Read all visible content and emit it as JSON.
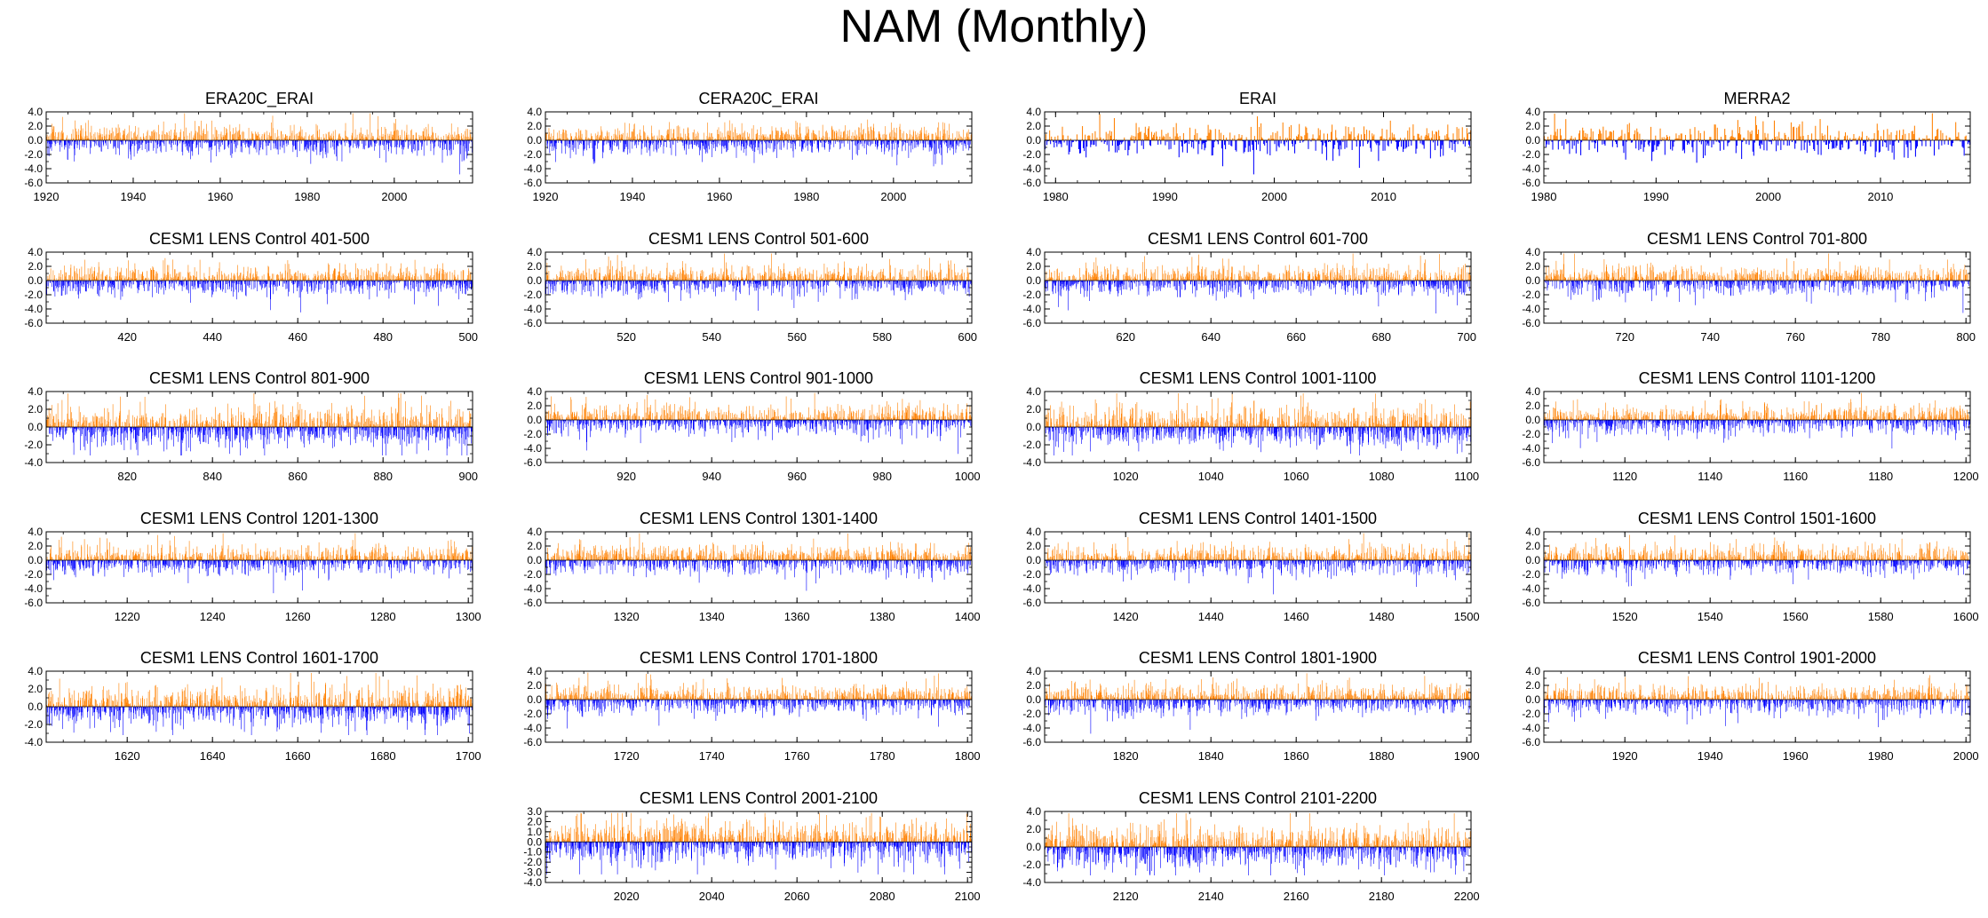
{
  "figure": {
    "title": "NAM (Monthly)",
    "colors": {
      "positive": "#ff8000",
      "negative": "#0000ff",
      "frame": "#000000",
      "zero": "#000000"
    }
  },
  "chart_data": [
    {
      "type": "bar",
      "title": "ERA20C_ERAI",
      "x_range": [
        1920,
        2018
      ],
      "ylim": [
        -6,
        4
      ],
      "yticks": [
        "4.0",
        "2.0",
        "0.0",
        "-2.0",
        "-4.0",
        "-6.0"
      ],
      "xticks": [
        1920,
        1940,
        1960,
        1980,
        2000
      ],
      "amplitude": 1.0
    },
    {
      "type": "bar",
      "title": "CERA20C_ERAI",
      "x_range": [
        1920,
        2018
      ],
      "ylim": [
        -6,
        4
      ],
      "yticks": [
        "4.0",
        "2.0",
        "0.0",
        "-2.0",
        "-4.0",
        "-6.0"
      ],
      "xticks": [
        1920,
        1940,
        1960,
        1980,
        2000
      ],
      "amplitude": 1.0
    },
    {
      "type": "bar",
      "title": "ERAI",
      "x_range": [
        1979,
        2018
      ],
      "ylim": [
        -6,
        4
      ],
      "yticks": [
        "4.0",
        "2.0",
        "0.0",
        "-2.0",
        "-4.0",
        "-6.0"
      ],
      "xticks": [
        1980,
        1990,
        2000,
        2010
      ],
      "amplitude": 1.1
    },
    {
      "type": "bar",
      "title": "MERRA2",
      "x_range": [
        1980,
        2018
      ],
      "ylim": [
        -6,
        4
      ],
      "yticks": [
        "4.0",
        "2.0",
        "0.0",
        "-2.0",
        "-4.0",
        "-6.0"
      ],
      "xticks": [
        1980,
        1990,
        2000,
        2010
      ],
      "amplitude": 1.1
    },
    {
      "type": "bar",
      "title": "CESM1 LENS Control 401-500",
      "x_range": [
        401,
        501
      ],
      "ylim": [
        -6,
        4
      ],
      "yticks": [
        "4.0",
        "2.0",
        "0.0",
        "-2.0",
        "-4.0",
        "-6.0"
      ],
      "xticks": [
        420,
        440,
        460,
        480,
        500
      ],
      "amplitude": 1.0
    },
    {
      "type": "bar",
      "title": "CESM1 LENS Control 501-600",
      "x_range": [
        501,
        601
      ],
      "ylim": [
        -6,
        4
      ],
      "yticks": [
        "4.0",
        "2.0",
        "0.0",
        "-2.0",
        "-4.0",
        "-6.0"
      ],
      "xticks": [
        520,
        540,
        560,
        580,
        600
      ],
      "amplitude": 1.0
    },
    {
      "type": "bar",
      "title": "CESM1 LENS Control 601-700",
      "x_range": [
        601,
        701
      ],
      "ylim": [
        -6,
        4
      ],
      "yticks": [
        "4.0",
        "2.0",
        "0.0",
        "-2.0",
        "-4.0",
        "-6.0"
      ],
      "xticks": [
        620,
        640,
        660,
        680,
        700
      ],
      "amplitude": 1.0
    },
    {
      "type": "bar",
      "title": "CESM1 LENS Control 701-800",
      "x_range": [
        701,
        801
      ],
      "ylim": [
        -6,
        4
      ],
      "yticks": [
        "4.0",
        "2.0",
        "0.0",
        "-2.0",
        "-4.0",
        "-6.0"
      ],
      "xticks": [
        720,
        740,
        760,
        780,
        800
      ],
      "amplitude": 1.0
    },
    {
      "type": "bar",
      "title": "CESM1 LENS Control 801-900",
      "x_range": [
        801,
        901
      ],
      "ylim": [
        -4,
        4
      ],
      "yticks": [
        "4.0",
        "2.0",
        "0.0",
        "-2.0",
        "-4.0"
      ],
      "xticks": [
        820,
        840,
        860,
        880,
        900
      ],
      "amplitude": 1.1
    },
    {
      "type": "bar",
      "title": "CESM1 LENS Control 901-1000",
      "x_range": [
        901,
        1001
      ],
      "ylim": [
        -6,
        4
      ],
      "yticks": [
        "4.0",
        "2.0",
        "0.0",
        "-2.0",
        "-4.0",
        "-6.0"
      ],
      "xticks": [
        920,
        940,
        960,
        980,
        1000
      ],
      "amplitude": 1.0
    },
    {
      "type": "bar",
      "title": "CESM1 LENS Control 1001-1100",
      "x_range": [
        1001,
        1101
      ],
      "ylim": [
        -4,
        4
      ],
      "yticks": [
        "4.0",
        "2.0",
        "0.0",
        "-2.0",
        "-4.0"
      ],
      "xticks": [
        1020,
        1040,
        1060,
        1080,
        1100
      ],
      "amplitude": 1.1
    },
    {
      "type": "bar",
      "title": "CESM1 LENS Control 1101-1200",
      "x_range": [
        1101,
        1201
      ],
      "ylim": [
        -6,
        4
      ],
      "yticks": [
        "4.0",
        "2.0",
        "0.0",
        "-2.0",
        "-4.0",
        "-6.0"
      ],
      "xticks": [
        1120,
        1140,
        1160,
        1180,
        1200
      ],
      "amplitude": 1.0
    },
    {
      "type": "bar",
      "title": "CESM1 LENS Control 1201-1300",
      "x_range": [
        1201,
        1301
      ],
      "ylim": [
        -6,
        4
      ],
      "yticks": [
        "4.0",
        "2.0",
        "0.0",
        "-2.0",
        "-4.0",
        "-6.0"
      ],
      "xticks": [
        1220,
        1240,
        1260,
        1280,
        1300
      ],
      "amplitude": 1.0
    },
    {
      "type": "bar",
      "title": "CESM1 LENS Control 1301-1400",
      "x_range": [
        1301,
        1401
      ],
      "ylim": [
        -6,
        4
      ],
      "yticks": [
        "4.0",
        "2.0",
        "0.0",
        "-2.0",
        "-4.0",
        "-6.0"
      ],
      "xticks": [
        1320,
        1340,
        1360,
        1380,
        1400
      ],
      "amplitude": 1.0
    },
    {
      "type": "bar",
      "title": "CESM1 LENS Control 1401-1500",
      "x_range": [
        1401,
        1501
      ],
      "ylim": [
        -6,
        4
      ],
      "yticks": [
        "4.0",
        "2.0",
        "0.0",
        "-2.0",
        "-4.0",
        "-6.0"
      ],
      "xticks": [
        1420,
        1440,
        1460,
        1480,
        1500
      ],
      "amplitude": 1.0
    },
    {
      "type": "bar",
      "title": "CESM1 LENS Control 1501-1600",
      "x_range": [
        1501,
        1601
      ],
      "ylim": [
        -6,
        4
      ],
      "yticks": [
        "4.0",
        "2.0",
        "0.0",
        "-2.0",
        "-4.0",
        "-6.0"
      ],
      "xticks": [
        1520,
        1540,
        1560,
        1580,
        1600
      ],
      "amplitude": 1.0
    },
    {
      "type": "bar",
      "title": "CESM1 LENS Control 1601-1700",
      "x_range": [
        1601,
        1701
      ],
      "ylim": [
        -4,
        4
      ],
      "yticks": [
        "4.0",
        "2.0",
        "0.0",
        "-2.0",
        "-4.0"
      ],
      "xticks": [
        1620,
        1640,
        1660,
        1680,
        1700
      ],
      "amplitude": 1.1
    },
    {
      "type": "bar",
      "title": "CESM1 LENS Control 1701-1800",
      "x_range": [
        1701,
        1801
      ],
      "ylim": [
        -6,
        4
      ],
      "yticks": [
        "4.0",
        "2.0",
        "0.0",
        "-2.0",
        "-4.0",
        "-6.0"
      ],
      "xticks": [
        1720,
        1740,
        1760,
        1780,
        1800
      ],
      "amplitude": 1.0
    },
    {
      "type": "bar",
      "title": "CESM1 LENS Control 1801-1900",
      "x_range": [
        1801,
        1901
      ],
      "ylim": [
        -6,
        4
      ],
      "yticks": [
        "4.0",
        "2.0",
        "0.0",
        "-2.0",
        "-4.0",
        "-6.0"
      ],
      "xticks": [
        1820,
        1840,
        1860,
        1880,
        1900
      ],
      "amplitude": 1.0
    },
    {
      "type": "bar",
      "title": "CESM1 LENS Control 1901-2000",
      "x_range": [
        1901,
        2001
      ],
      "ylim": [
        -6,
        4
      ],
      "yticks": [
        "4.0",
        "2.0",
        "0.0",
        "-2.0",
        "-4.0",
        "-6.0"
      ],
      "xticks": [
        1920,
        1940,
        1960,
        1980,
        2000
      ],
      "amplitude": 1.0
    },
    {
      "type": "bar",
      "title": "CESM1 LENS Control 2001-2100",
      "x_range": [
        2001,
        2101
      ],
      "ylim": [
        -4,
        3
      ],
      "yticks": [
        "3.0",
        "2.0",
        "1.0",
        "0.0",
        "-1.0",
        "-2.0",
        "-3.0",
        "-4.0"
      ],
      "xticks": [
        2020,
        2040,
        2060,
        2080,
        2100
      ],
      "amplitude": 1.0
    },
    {
      "type": "bar",
      "title": "CESM1 LENS Control 2101-2200",
      "x_range": [
        2101,
        2201
      ],
      "ylim": [
        -4,
        4
      ],
      "yticks": [
        "4.0",
        "2.0",
        "0.0",
        "-2.0",
        "-4.0"
      ],
      "xticks": [
        2120,
        2140,
        2160,
        2180,
        2200
      ],
      "amplitude": 1.1
    }
  ]
}
